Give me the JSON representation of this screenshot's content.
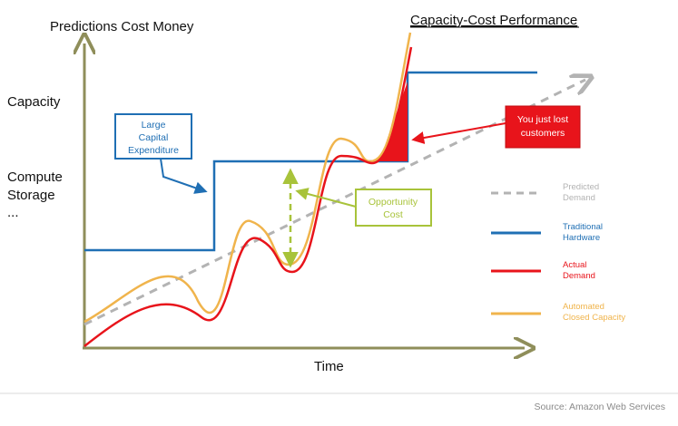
{
  "title_left": "Predictions Cost Money",
  "title_right": "Capacity-Cost Performance",
  "y_labels": [
    "Capacity",
    "Compute",
    "Storage",
    "..."
  ],
  "x_label": "Time",
  "callouts": {
    "capex": [
      "Large",
      "Capital",
      "Expenditure"
    ],
    "opportunity": [
      "Opportunity",
      "Cost"
    ],
    "lost": [
      "You just lost",
      "customers"
    ]
  },
  "legend": [
    {
      "lines": [
        "Predicted",
        "Demand"
      ],
      "color": "#b3b3b3",
      "dashed": true
    },
    {
      "lines": [
        "Traditional",
        "Hardware"
      ],
      "color": "#1f6fb4",
      "dashed": false
    },
    {
      "lines": [
        "Actual",
        "Demand"
      ],
      "color": "#e8141b",
      "dashed": false
    },
    {
      "lines": [
        "Automated",
        "Closed Capacity"
      ],
      "color": "#f0b44c",
      "dashed": false
    }
  ],
  "source": "Source: Amazon Web Services",
  "colors": {
    "axis": "#8f8e5a",
    "blue": "#1f6fb4",
    "red": "#e8141b",
    "orange": "#f0b44c",
    "gray": "#b3b3b3",
    "green": "#a8c33a"
  }
}
